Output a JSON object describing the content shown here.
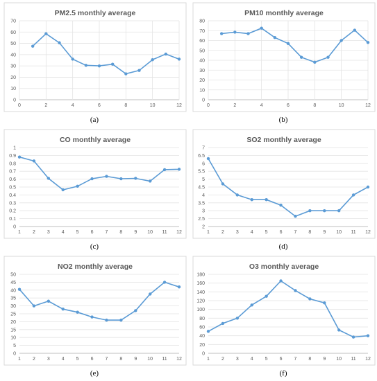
{
  "panels": [
    {
      "label": "(a)",
      "title": "PM2.5 monthly average",
      "chart_data": {
        "type": "scatter",
        "title": "PM2.5 monthly average",
        "xlim": [
          0,
          12
        ],
        "xticks": [
          0,
          2,
          4,
          6,
          8,
          10,
          12
        ],
        "ylim": [
          0,
          70
        ],
        "yticks": [
          0,
          10,
          20,
          30,
          40,
          50,
          60,
          70
        ],
        "grid": true,
        "series": [
          {
            "x": [
              1,
              2,
              3,
              4,
              5,
              6,
              7,
              8,
              9,
              10,
              11,
              12
            ],
            "y": [
              47.5,
              58.5,
              50.5,
              36,
              30.5,
              30,
              31.5,
              23,
              26,
              35.5,
              40.5,
              36
            ]
          }
        ]
      }
    },
    {
      "label": "(b)",
      "title": "PM10 monthly average",
      "chart_data": {
        "type": "scatter",
        "title": "PM10 monthly average",
        "xlim": [
          0,
          12
        ],
        "xticks": [
          0,
          2,
          4,
          6,
          8,
          10,
          12
        ],
        "ylim": [
          0,
          80
        ],
        "yticks": [
          0,
          10,
          20,
          30,
          40,
          50,
          60,
          70,
          80
        ],
        "grid": true,
        "series": [
          {
            "x": [
              1,
              2,
              3,
              4,
              5,
              6,
              7,
              8,
              9,
              10,
              11,
              12
            ],
            "y": [
              67,
              68.5,
              67,
              72.5,
              63,
              57,
              43,
              38,
              43,
              60,
              70.5,
              58
            ]
          }
        ]
      }
    },
    {
      "label": "(c)",
      "title": "CO monthly average",
      "chart_data": {
        "type": "line",
        "title": "CO monthly average",
        "categories": [
          "1",
          "2",
          "3",
          "4",
          "5",
          "6",
          "7",
          "8",
          "9",
          "10",
          "11",
          "12"
        ],
        "ylim": [
          0,
          1
        ],
        "yticks": [
          0,
          0.1,
          0.2,
          0.3,
          0.4,
          0.5,
          0.6,
          0.7,
          0.8,
          0.9,
          1
        ],
        "grid": true,
        "series": [
          {
            "values": [
              0.88,
              0.83,
              0.61,
              0.465,
              0.51,
              0.605,
              0.635,
              0.605,
              0.61,
              0.575,
              0.72,
              0.725
            ]
          }
        ]
      }
    },
    {
      "label": "(d)",
      "title": "SO2 monthly average",
      "chart_data": {
        "type": "line",
        "title": "SO2 monthly average",
        "categories": [
          "1",
          "2",
          "3",
          "4",
          "5",
          "6",
          "7",
          "8",
          "9",
          "10",
          "11",
          "12"
        ],
        "ylim": [
          2,
          7
        ],
        "yticks": [
          2,
          2.5,
          3,
          3.5,
          4,
          4.5,
          5,
          5.5,
          6,
          6.5,
          7
        ],
        "grid": true,
        "series": [
          {
            "values": [
              6.3,
              4.7,
              4.0,
              3.7,
              3.7,
              3.35,
              2.65,
              3.0,
              3.0,
              3.0,
              4.0,
              4.5
            ]
          }
        ]
      }
    },
    {
      "label": "(e)",
      "title": "NO2 monthly average",
      "chart_data": {
        "type": "line",
        "title": "NO2 monthly average",
        "categories": [
          "1",
          "2",
          "3",
          "4",
          "5",
          "6",
          "7",
          "8",
          "9",
          "10",
          "11",
          "12"
        ],
        "ylim": [
          0,
          50
        ],
        "yticks": [
          0,
          5,
          10,
          15,
          20,
          25,
          30,
          35,
          40,
          45,
          50
        ],
        "grid": true,
        "series": [
          {
            "values": [
              40.5,
              30,
              33,
              28,
              26,
              23,
              21,
              21,
              27,
              37.5,
              45,
              42
            ]
          }
        ]
      }
    },
    {
      "label": "(f)",
      "title": "O3 monthly average",
      "chart_data": {
        "type": "line",
        "title": "O3 monthly average",
        "categories": [
          "1",
          "2",
          "3",
          "4",
          "5",
          "6",
          "7",
          "8",
          "9",
          "10",
          "11",
          "12"
        ],
        "ylim": [
          0,
          180
        ],
        "yticks": [
          0,
          20,
          40,
          60,
          80,
          100,
          120,
          140,
          160,
          180
        ],
        "grid": true,
        "series": [
          {
            "values": [
              50,
              68,
              80,
              110,
              130,
              165,
              143,
              124,
              115,
              53,
              37,
              40
            ]
          }
        ]
      }
    }
  ],
  "colors": {
    "series": "#5b9bd5",
    "grid": "#e3e3e3",
    "text": "#595959"
  }
}
